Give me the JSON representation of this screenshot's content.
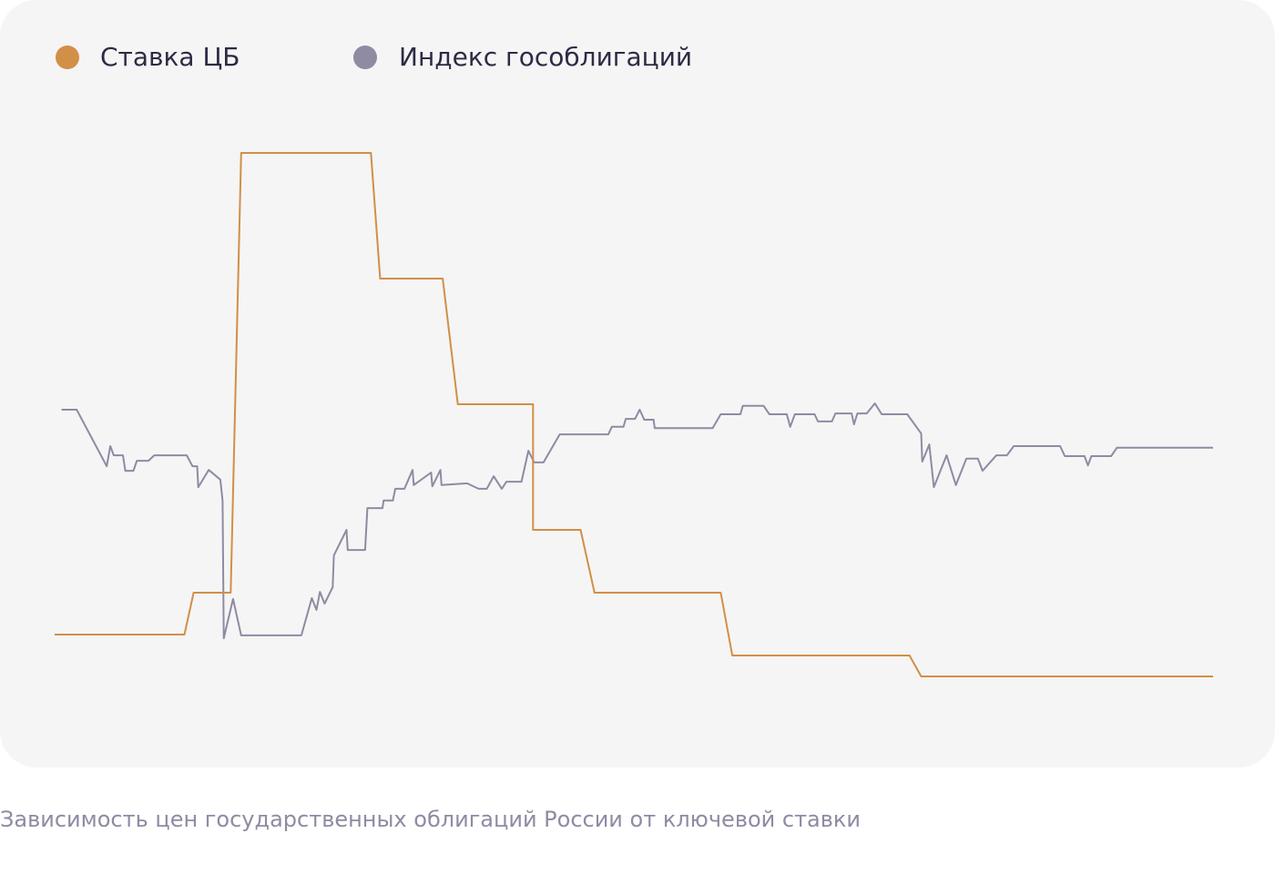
{
  "chart_data": {
    "type": "line",
    "caption": "Зависимость цен государственных облигаций России от ключевой ставки",
    "xlim": [
      0,
      100
    ],
    "ylim": [
      6,
      22
    ],
    "series": [
      {
        "name": "Ставка ЦБ",
        "color": "#d18f48",
        "x": [
          0,
          11.2,
          12.0,
          15.2,
          16.1,
          27.3,
          28.1,
          33.5,
          34.8,
          41.3,
          41.3,
          45.4,
          46.6,
          57.5,
          58.5,
          73.8,
          74.8,
          100
        ],
        "values": [
          8.5,
          8.5,
          9.5,
          9.5,
          20,
          20,
          17,
          17,
          14,
          14,
          11,
          11,
          9.5,
          9.5,
          8,
          8,
          7.5,
          7.5
        ]
      },
      {
        "name": "Индекс гособлигаций",
        "color": "#8e8ba3",
        "x": [
          0.6,
          1.9,
          4.5,
          4.8,
          5.1,
          5.9,
          6.1,
          6.8,
          7.1,
          8.1,
          8.6,
          11.4,
          11.9,
          12.3,
          12.4,
          13.3,
          14.3,
          14.5,
          14.6,
          15.4,
          16.1,
          21.3,
          22.2,
          22.6,
          22.9,
          23.3,
          24.0,
          24.1,
          25.2,
          25.3,
          26.8,
          27.0,
          28.3,
          28.4,
          29.2,
          29.4,
          30.2,
          30.9,
          31.0,
          32.5,
          32.6,
          33.3,
          33.4,
          35.6,
          36.6,
          37.3,
          37.9,
          38.6,
          39.0,
          40.3,
          40.9,
          41.4,
          42.2,
          43.6,
          47.8,
          48.1,
          49.1,
          49.3,
          50.1,
          50.5,
          50.9,
          51.7,
          51.8,
          56.8,
          57.5,
          59.2,
          59.4,
          61.2,
          61.7,
          63.2,
          63.5,
          63.9,
          65.6,
          65.9,
          67.1,
          67.4,
          68.8,
          69.0,
          69.3,
          70.1,
          70.8,
          71.4,
          73.6,
          74.8,
          74.9,
          75.5,
          75.9,
          77.0,
          77.8,
          78.7,
          79.7,
          80.1,
          81.3,
          82.2,
          82.8,
          86.8,
          87.2,
          88.9,
          89.2,
          89.5,
          91.2,
          91.7,
          100
        ],
        "values": [
          13.87,
          13.87,
          12.52,
          13.0,
          12.78,
          12.78,
          12.41,
          12.41,
          12.65,
          12.65,
          12.78,
          12.78,
          12.52,
          12.52,
          12.02,
          12.43,
          12.2,
          11.7,
          8.41,
          9.35,
          8.48,
          8.48,
          9.37,
          9.09,
          9.52,
          9.24,
          9.63,
          10.39,
          11.0,
          10.52,
          10.52,
          11.52,
          11.52,
          11.7,
          11.7,
          11.98,
          11.98,
          12.43,
          12.07,
          12.37,
          12.04,
          12.43,
          12.07,
          12.11,
          11.98,
          11.98,
          12.28,
          11.98,
          12.15,
          12.15,
          12.89,
          12.61,
          12.61,
          13.28,
          13.28,
          13.46,
          13.46,
          13.65,
          13.65,
          13.87,
          13.63,
          13.63,
          13.43,
          13.43,
          13.76,
          13.76,
          13.96,
          13.96,
          13.76,
          13.76,
          13.46,
          13.76,
          13.76,
          13.59,
          13.59,
          13.78,
          13.78,
          13.52,
          13.78,
          13.78,
          14.02,
          13.76,
          13.76,
          13.3,
          12.63,
          13.04,
          12.02,
          12.78,
          12.07,
          12.7,
          12.7,
          12.41,
          12.78,
          12.78,
          13.0,
          13.0,
          12.76,
          12.76,
          12.54,
          12.76,
          12.76,
          12.96,
          12.96
        ]
      }
    ]
  }
}
